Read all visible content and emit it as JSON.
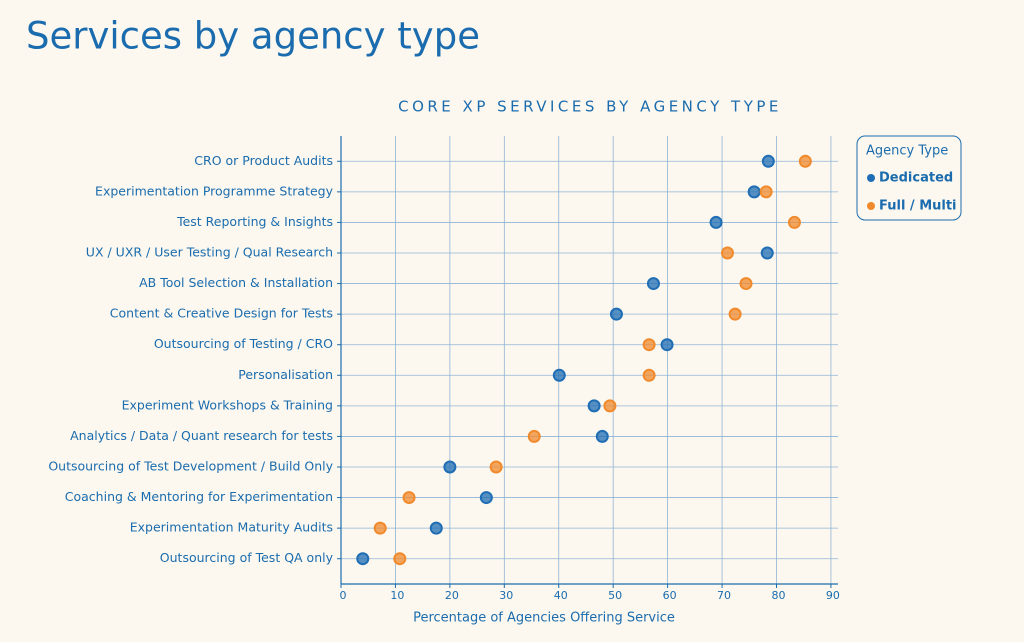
{
  "page_title": "Services by agency type",
  "chart_data": {
    "type": "dot",
    "title": "CORE XP SERVICES BY AGENCY TYPE",
    "x_label": "Percentage of Agencies Offering Service",
    "categories": [
      "CRO or Product Audits",
      "Experimentation Programme Strategy",
      "Test Reporting & Insights",
      "UX / UXR / User Testing / Qual Research",
      "AB Tool Selection & Installation",
      "Content & Creative Design for Tests",
      "Outsourcing of Testing / CRO",
      "Personalisation",
      "Experiment Workshops & Training",
      "Analytics / Data / Quant research for tests",
      "Outsourcing of Test Development / Build Only",
      "Coaching & Mentoring for Experimentation",
      "Experimentation Maturity Audits",
      "Outsourcing of Test QA only"
    ],
    "series": [
      {
        "name": "Dedicated",
        "color": "#1f6db4",
        "values": [
          78.5,
          75.9,
          68.9,
          78.3,
          57.4,
          50.6,
          59.9,
          40.1,
          46.5,
          48.0,
          20.0,
          26.7,
          17.5,
          4.0
        ]
      },
      {
        "name": "Full / Multi",
        "color": "#f08a2c",
        "values": [
          85.3,
          78.1,
          83.3,
          71.0,
          74.4,
          72.4,
          56.6,
          56.6,
          49.4,
          35.5,
          28.5,
          12.5,
          7.2,
          10.8
        ]
      }
    ],
    "legend_title": "Agency Type",
    "legend_position": "right",
    "xlim": [
      0,
      91.3
    ],
    "xticks": [
      0,
      10,
      20,
      30,
      40,
      50,
      60,
      70,
      80,
      90
    ],
    "grid": true
  }
}
